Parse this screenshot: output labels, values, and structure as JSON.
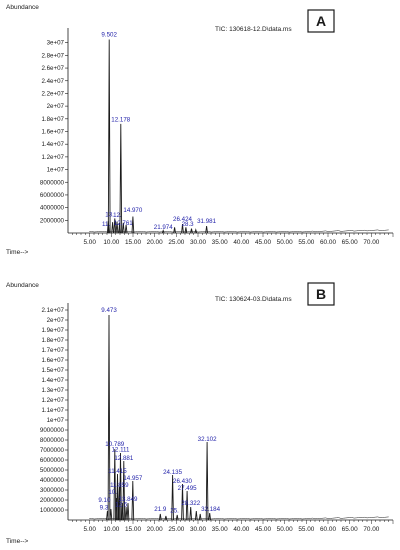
{
  "chart_data": [
    {
      "type": "line",
      "panel_label": "A",
      "ylabel": "Abundance",
      "xlabel": "Time-->",
      "file_label": "TIC: 130618-12.D\\data.ms",
      "xlim": [
        0,
        75
      ],
      "ylim": [
        0,
        32000000
      ],
      "x_ticks": [
        "5.00",
        "10.00",
        "15.00",
        "20.00",
        "25.00",
        "30.00",
        "35.00",
        "40.00",
        "45.00",
        "50.00",
        "55.00",
        "60.00",
        "65.00",
        "70.00"
      ],
      "y_ticks": [
        {
          "value": 2000000,
          "label": "2000000"
        },
        {
          "value": 4000000,
          "label": "4000000"
        },
        {
          "value": 6000000,
          "label": "6000000"
        },
        {
          "value": 8000000,
          "label": "8000000"
        },
        {
          "value": 10000000,
          "label": "1e+07"
        },
        {
          "value": 12000000,
          "label": "1.2e+07"
        },
        {
          "value": 14000000,
          "label": "1.4e+07"
        },
        {
          "value": 16000000,
          "label": "1.6e+07"
        },
        {
          "value": 18000000,
          "label": "1.8e+07"
        },
        {
          "value": 20000000,
          "label": "2e+07"
        },
        {
          "value": 22000000,
          "label": "2.2e+07"
        },
        {
          "value": 24000000,
          "label": "2.4e+07"
        },
        {
          "value": 26000000,
          "label": "2.6e+07"
        },
        {
          "value": 28000000,
          "label": "2.8e+07"
        },
        {
          "value": 30000000,
          "label": "3e+07"
        }
      ],
      "peaks": [
        {
          "x": 9.3,
          "y": 1900000
        },
        {
          "x": 9.502,
          "y": 30500000
        },
        {
          "x": 10.3,
          "y": 1700000
        },
        {
          "x": 10.8,
          "y": 2300000
        },
        {
          "x": 11.3,
          "y": 1800000
        },
        {
          "x": 11.9,
          "y": 1600000
        },
        {
          "x": 12.178,
          "y": 17200000
        },
        {
          "x": 12.761,
          "y": 1600000
        },
        {
          "x": 13.4,
          "y": 1300000
        },
        {
          "x": 14.97,
          "y": 2600000
        },
        {
          "x": 21.974,
          "y": 400000
        },
        {
          "x": 24.6,
          "y": 900000
        },
        {
          "x": 26.424,
          "y": 1400000
        },
        {
          "x": 27.2,
          "y": 900000
        },
        {
          "x": 28.5,
          "y": 700000
        },
        {
          "x": 29.5,
          "y": 500000
        },
        {
          "x": 31.981,
          "y": 1100000
        }
      ],
      "annotations": [
        {
          "text": "9.502",
          "x": 9.502,
          "y": 31000000
        },
        {
          "text": "12.178",
          "x": 12.178,
          "y": 17600000
        },
        {
          "text": "14.970",
          "x": 14.97,
          "y": 3300000
        },
        {
          "text": "13.",
          "x": 9.6,
          "y": 2600000
        },
        {
          "text": "12.",
          "x": 11.4,
          "y": 2500000
        },
        {
          "text": "11.",
          "x": 8.8,
          "y": 1100000
        },
        {
          "text": "12.761",
          "x": 12.761,
          "y": 1300000
        },
        {
          "text": "21.974",
          "x": 21.974,
          "y": 600000
        },
        {
          "text": "26.424",
          "x": 26.424,
          "y": 1900000
        },
        {
          "text": "28.3",
          "x": 27.6,
          "y": 1100000
        },
        {
          "text": "31.981",
          "x": 31.981,
          "y": 1600000
        }
      ]
    },
    {
      "type": "line",
      "panel_label": "B",
      "ylabel": "Abundance",
      "xlabel": "Time-->",
      "file_label": "TIC: 130624-03.D\\data.ms",
      "xlim": [
        0,
        75
      ],
      "ylim": [
        0,
        21500000
      ],
      "x_ticks": [
        "5.00",
        "10.00",
        "15.00",
        "20.00",
        "25.00",
        "30.00",
        "35.00",
        "40.00",
        "45.00",
        "50.00",
        "55.00",
        "60.00",
        "65.00",
        "70.00"
      ],
      "y_ticks": [
        {
          "value": 1000000,
          "label": "1000000"
        },
        {
          "value": 2000000,
          "label": "2000000"
        },
        {
          "value": 3000000,
          "label": "3000000"
        },
        {
          "value": 4000000,
          "label": "4000000"
        },
        {
          "value": 5000000,
          "label": "5000000"
        },
        {
          "value": 6000000,
          "label": "6000000"
        },
        {
          "value": 7000000,
          "label": "7000000"
        },
        {
          "value": 8000000,
          "label": "8000000"
        },
        {
          "value": 9000000,
          "label": "9000000"
        },
        {
          "value": 10000000,
          "label": "1e+07"
        },
        {
          "value": 11000000,
          "label": "1.1e+07"
        },
        {
          "value": 12000000,
          "label": "1.2e+07"
        },
        {
          "value": 13000000,
          "label": "1.3e+07"
        },
        {
          "value": 14000000,
          "label": "1.4e+07"
        },
        {
          "value": 15000000,
          "label": "1.5e+07"
        },
        {
          "value": 16000000,
          "label": "1.6e+07"
        },
        {
          "value": 17000000,
          "label": "1.7e+07"
        },
        {
          "value": 18000000,
          "label": "1.8e+07"
        },
        {
          "value": 19000000,
          "label": "1.9e+07"
        },
        {
          "value": 20000000,
          "label": "2e+07"
        },
        {
          "value": 21000000,
          "label": "2.1e+07"
        }
      ],
      "peaks": [
        {
          "x": 9.1,
          "y": 900000
        },
        {
          "x": 9.473,
          "y": 20500000
        },
        {
          "x": 9.9,
          "y": 1100000
        },
        {
          "x": 10.789,
          "y": 7100000
        },
        {
          "x": 11.2,
          "y": 2200000
        },
        {
          "x": 11.415,
          "y": 4600000
        },
        {
          "x": 11.859,
          "y": 3300000
        },
        {
          "x": 12.111,
          "y": 6700000
        },
        {
          "x": 12.6,
          "y": 1700000
        },
        {
          "x": 12.881,
          "y": 5900000
        },
        {
          "x": 13.4,
          "y": 1300000
        },
        {
          "x": 13.849,
          "y": 1700000
        },
        {
          "x": 14.957,
          "y": 3900000
        },
        {
          "x": 21.3,
          "y": 600000
        },
        {
          "x": 22.6,
          "y": 400000
        },
        {
          "x": 24.135,
          "y": 4500000
        },
        {
          "x": 25.2,
          "y": 500000
        },
        {
          "x": 26.43,
          "y": 3600000
        },
        {
          "x": 27.495,
          "y": 2900000
        },
        {
          "x": 28.322,
          "y": 1300000
        },
        {
          "x": 29.6,
          "y": 900000
        },
        {
          "x": 30.5,
          "y": 600000
        },
        {
          "x": 32.102,
          "y": 7800000
        },
        {
          "x": 32.7,
          "y": 700000
        }
      ],
      "annotations": [
        {
          "text": "9.473",
          "x": 9.473,
          "y": 20800000
        },
        {
          "text": "10.789",
          "x": 10.789,
          "y": 7400000
        },
        {
          "text": "12.111",
          "x": 12.111,
          "y": 6850000
        },
        {
          "text": "12.881",
          "x": 12.881,
          "y": 6000000
        },
        {
          "text": "11.415",
          "x": 11.415,
          "y": 4700000
        },
        {
          "text": "14.957",
          "x": 14.957,
          "y": 4000000
        },
        {
          "text": "11.859",
          "x": 11.859,
          "y": 3300000
        },
        {
          "text": "13.849",
          "x": 13.849,
          "y": 1900000
        },
        {
          "text": "9.10",
          "x": 8.4,
          "y": 1800000
        },
        {
          "text": "10.",
          "x": 10.3,
          "y": 2600000
        },
        {
          "text": "12.5",
          "x": 12.3,
          "y": 1350000
        },
        {
          "text": "9.3",
          "x": 8.3,
          "y": 1050000
        },
        {
          "text": "24.135",
          "x": 24.135,
          "y": 4600000
        },
        {
          "text": "26.430",
          "x": 26.43,
          "y": 3700000
        },
        {
          "text": "27.495",
          "x": 27.495,
          "y": 3000000
        },
        {
          "text": "28.322",
          "x": 28.322,
          "y": 1500000
        },
        {
          "text": "32.102",
          "x": 32.102,
          "y": 7900000
        },
        {
          "text": "32.184",
          "x": 32.9,
          "y": 900000
        },
        {
          "text": "21.9",
          "x": 21.3,
          "y": 900000
        },
        {
          "text": "25.",
          "x": 24.6,
          "y": 750000
        }
      ]
    }
  ]
}
